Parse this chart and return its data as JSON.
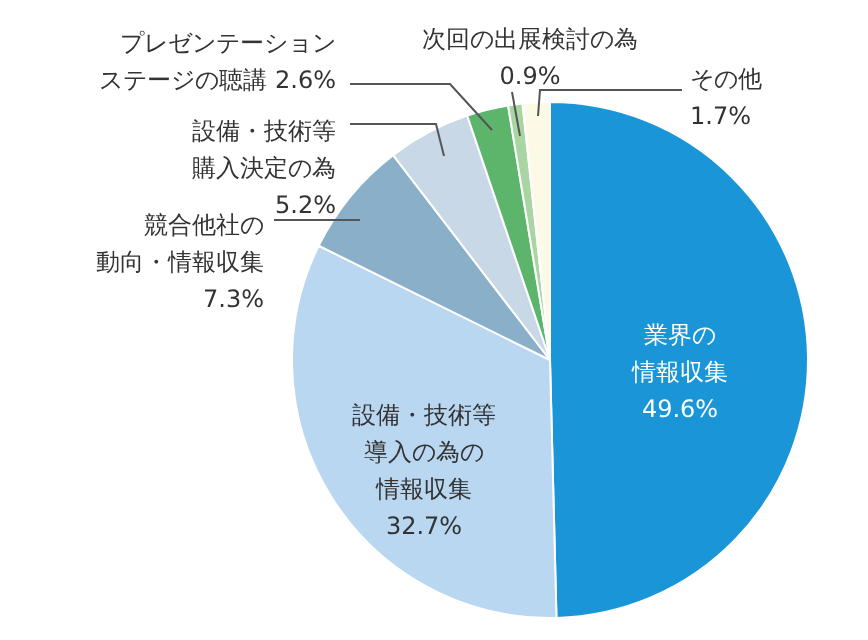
{
  "chart_data": {
    "type": "pie",
    "categories": [
      "業界の情報収集",
      "設備・技術等導入の為の情報収集",
      "競合他社の動向・情報収集",
      "設備・技術等購入決定の為",
      "プレゼンテーションステージの聴講",
      "次回の出展検討の為",
      "その他"
    ],
    "values": [
      49.6,
      32.7,
      7.3,
      5.2,
      2.6,
      0.9,
      1.7
    ],
    "value_labels": [
      "49.6%",
      "32.7%",
      "7.3%",
      "5.2%",
      "2.6%",
      "0.9%",
      "1.7%"
    ],
    "colors": [
      "#1a96d8",
      "#b9d7f0",
      "#8aafc8",
      "#c9d8e6",
      "#5cb56a",
      "#a8d5a2",
      "#fcfae6"
    ]
  }
}
